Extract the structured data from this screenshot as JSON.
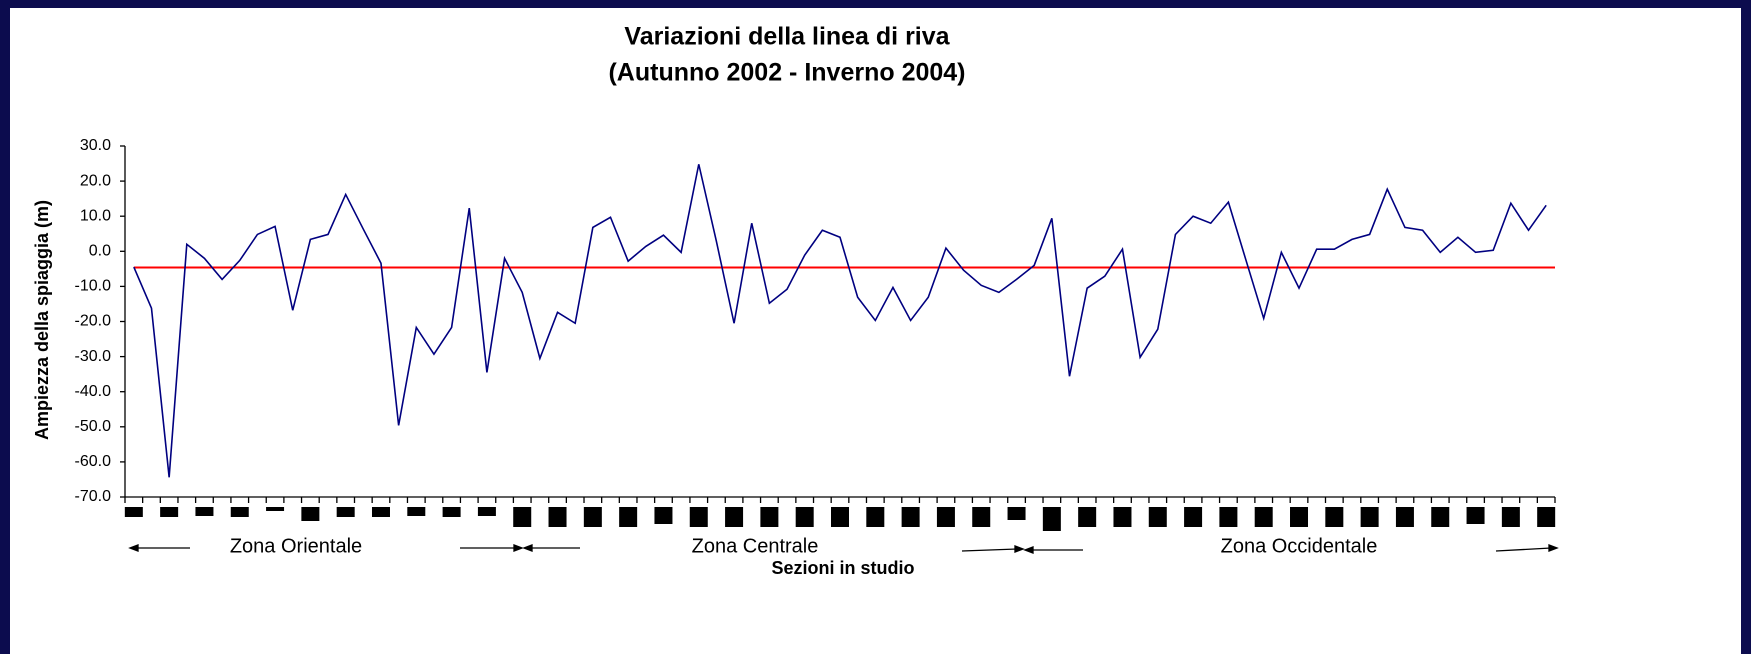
{
  "chart_data": {
    "type": "line",
    "title": "Variazioni della linea di riva",
    "subtitle": "(Autunno 2002 - Inverno 2004)",
    "y_label": "Ampiezza della spiaggia (m)",
    "x_label": "Sezioni in studio",
    "zones": [
      "Zona Orientale",
      "Zona Centrale",
      "Zona Occidentale"
    ],
    "categories": [
      null,
      null,
      null,
      null,
      null,
      null,
      null,
      null,
      null,
      null,
      null,
      null,
      null,
      null,
      null,
      null,
      null,
      null,
      null,
      null,
      null,
      null,
      null,
      null,
      null,
      null,
      null,
      null,
      null,
      null,
      null,
      null,
      null,
      null,
      null,
      null,
      null,
      null,
      null,
      null,
      null,
      null,
      null,
      null,
      null,
      null,
      null,
      null,
      null,
      null,
      null,
      null,
      null,
      null,
      null,
      null,
      null,
      null,
      null,
      null,
      null,
      null,
      null,
      null,
      null,
      null,
      null,
      null,
      null,
      null,
      null,
      null,
      null,
      null,
      null,
      null,
      null,
      null,
      null,
      null,
      null
    ],
    "series": [
      {
        "name": "Variazione",
        "color": "#000080",
        "values": [
          -4.5,
          -16.2,
          -64.4,
          2,
          -2,
          -8,
          -2.6,
          4.8,
          7.1,
          -16.8,
          3.4,
          4.8,
          16.2,
          6.3,
          -3.4,
          -49.6,
          -21.7,
          -29.3,
          -21.7,
          12.3,
          -34.5,
          -2,
          -11.7,
          -30.5,
          -17.4,
          -20.5,
          6.8,
          9.7,
          -2.8,
          1.4,
          4.6,
          -0.3,
          24.8,
          2.8,
          -20.5,
          8,
          -14.8,
          -10.8,
          -1.1,
          6,
          4,
          -13.1,
          -19.7,
          -10.3,
          -19.7,
          -13.1,
          0.9,
          -5.4,
          -9.7,
          -11.7,
          -8,
          -4,
          9.4,
          -35.6,
          -10.5,
          -7.1,
          0.6,
          -30.2,
          -22.2,
          4.8,
          10,
          8,
          14,
          -2.6,
          -19.1,
          -0.3,
          -10.5,
          0.6,
          0.6,
          3.4,
          4.8,
          17.7,
          6.8,
          6,
          -0.3,
          4,
          -0.3,
          0.3,
          13.7,
          6,
          13.1
        ]
      }
    ],
    "reference_line": {
      "value": -4.6,
      "color": "#ff0000"
    },
    "ylim": [
      -70,
      30
    ],
    "yticks": [
      {
        "value": -70,
        "label": "-70.0"
      },
      {
        "value": -60,
        "label": "-60.0"
      },
      {
        "value": -50,
        "label": "-50.0"
      },
      {
        "value": -40,
        "label": "-40.0"
      },
      {
        "value": -30,
        "label": "-30.0"
      },
      {
        "value": -20,
        "label": "-20.0"
      },
      {
        "value": -10,
        "label": "-10.0"
      },
      {
        "value": 0,
        "label": "0.0"
      },
      {
        "value": 10,
        "label": "10.0"
      },
      {
        "value": 20,
        "label": "20.0"
      },
      {
        "value": 30,
        "label": "30.0"
      }
    ],
    "negative_tick_color": "#ff0000",
    "grid": false
  }
}
